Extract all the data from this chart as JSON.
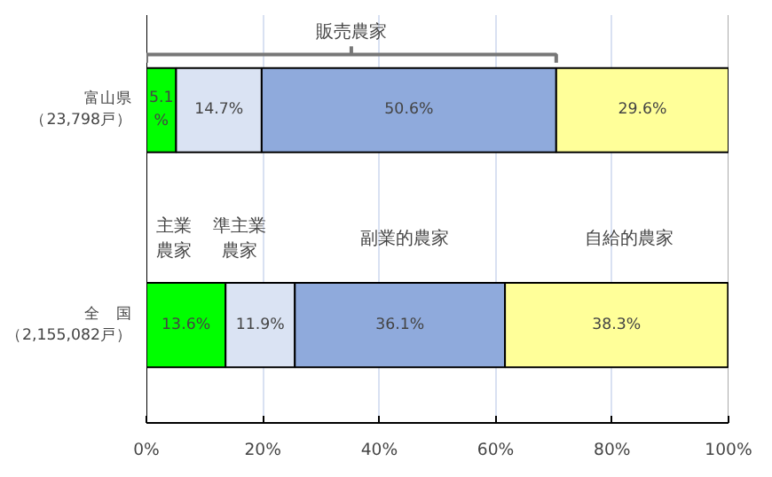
{
  "chart_data": {
    "type": "bar",
    "orientation": "horizontal",
    "stacked": true,
    "categories": [
      "富山県（23,798戸）",
      "全　国（2,155,082戸）"
    ],
    "series": [
      {
        "name": "主業農家",
        "color": "#00ff00",
        "values": [
          5.1,
          13.6
        ],
        "value_labels": [
          "5.1%",
          "13.6%"
        ]
      },
      {
        "name": "準主業農家",
        "color": "#dae3f3",
        "values": [
          14.7,
          11.9
        ],
        "value_labels": [
          "14.7%",
          "11.9%"
        ]
      },
      {
        "name": "副業的農家",
        "color": "#8faadc",
        "values": [
          50.6,
          36.1
        ],
        "value_labels": [
          "50.6%",
          "36.1%"
        ]
      },
      {
        "name": "自給的農家",
        "color": "#ffff99",
        "values": [
          29.6,
          38.3
        ],
        "value_labels": [
          "29.6%",
          "38.3%"
        ]
      }
    ],
    "xlim": [
      0,
      100
    ],
    "xticks": [
      {
        "value": 0,
        "label": "0%"
      },
      {
        "value": 20,
        "label": "20%"
      },
      {
        "value": 40,
        "label": "40%"
      },
      {
        "value": 60,
        "label": "60%"
      },
      {
        "value": 80,
        "label": "80%"
      },
      {
        "value": 100,
        "label": "100%"
      }
    ],
    "grid": "x",
    "legend": false,
    "annotations": [
      "販売農家"
    ]
  }
}
